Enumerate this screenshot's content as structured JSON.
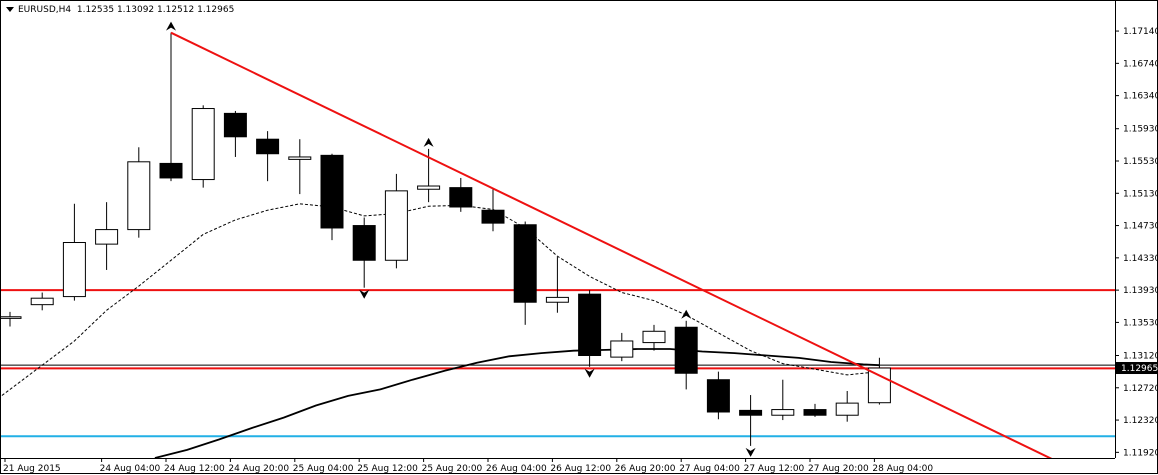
{
  "window": {
    "symbol": "EURUSD,H4",
    "ohlc": "1.12535 1.13092 1.12512 1.12965"
  },
  "chart_data": {
    "type": "candlestick",
    "symbol": "EURUSD",
    "timeframe": "H4",
    "ylim": [
      1.1185,
      1.175
    ],
    "y_ticks": [
      "1.17140",
      "1.16740",
      "1.16340",
      "1.15930",
      "1.15530",
      "1.15130",
      "1.14730",
      "1.14330",
      "1.13930",
      "1.13530",
      "1.13120",
      "1.12720",
      "1.12320",
      "1.11920"
    ],
    "current_price_label": "1.12965",
    "current_price": 1.12965,
    "x_tick_labels": [
      {
        "index": 0,
        "label": "21 Aug 2015"
      },
      {
        "index": 3,
        "label": "24 Aug 04:00"
      },
      {
        "index": 5,
        "label": "24 Aug 12:00"
      },
      {
        "index": 7,
        "label": "24 Aug 20:00"
      },
      {
        "index": 9,
        "label": "25 Aug 04:00"
      },
      {
        "index": 11,
        "label": "25 Aug 12:00"
      },
      {
        "index": 13,
        "label": "25 Aug 20:00"
      },
      {
        "index": 15,
        "label": "26 Aug 04:00"
      },
      {
        "index": 17,
        "label": "26 Aug 12:00"
      },
      {
        "index": 19,
        "label": "26 Aug 20:00"
      },
      {
        "index": 21,
        "label": "27 Aug 04:00"
      },
      {
        "index": 23,
        "label": "27 Aug 12:00"
      },
      {
        "index": 25,
        "label": "27 Aug 20:00"
      },
      {
        "index": 27,
        "label": "28 Aug 04:00"
      }
    ],
    "candles": [
      {
        "o": 1.1358,
        "h": 1.1366,
        "l": 1.1348,
        "c": 1.136
      },
      {
        "o": 1.1375,
        "h": 1.139,
        "l": 1.1368,
        "c": 1.1383
      },
      {
        "o": 1.1385,
        "h": 1.15,
        "l": 1.138,
        "c": 1.1452
      },
      {
        "o": 1.145,
        "h": 1.1502,
        "l": 1.1418,
        "c": 1.1468
      },
      {
        "o": 1.1468,
        "h": 1.157,
        "l": 1.1458,
        "c": 1.1552
      },
      {
        "o": 1.155,
        "h": 1.1712,
        "l": 1.1528,
        "c": 1.1532
      },
      {
        "o": 1.153,
        "h": 1.1622,
        "l": 1.152,
        "c": 1.1618
      },
      {
        "o": 1.1612,
        "h": 1.1615,
        "l": 1.1558,
        "c": 1.1583
      },
      {
        "o": 1.158,
        "h": 1.159,
        "l": 1.1528,
        "c": 1.1562
      },
      {
        "o": 1.1555,
        "h": 1.158,
        "l": 1.1512,
        "c": 1.1558
      },
      {
        "o": 1.156,
        "h": 1.1562,
        "l": 1.1455,
        "c": 1.147
      },
      {
        "o": 1.1473,
        "h": 1.1483,
        "l": 1.1396,
        "c": 1.143
      },
      {
        "o": 1.143,
        "h": 1.1537,
        "l": 1.142,
        "c": 1.1516
      },
      {
        "o": 1.1518,
        "h": 1.1568,
        "l": 1.1502,
        "c": 1.1522
      },
      {
        "o": 1.152,
        "h": 1.1532,
        "l": 1.149,
        "c": 1.1496
      },
      {
        "o": 1.1492,
        "h": 1.1518,
        "l": 1.1466,
        "c": 1.1476
      },
      {
        "o": 1.1474,
        "h": 1.1478,
        "l": 1.135,
        "c": 1.1378
      },
      {
        "o": 1.1378,
        "h": 1.1434,
        "l": 1.1365,
        "c": 1.1384
      },
      {
        "o": 1.1388,
        "h": 1.1393,
        "l": 1.1298,
        "c": 1.1312
      },
      {
        "o": 1.131,
        "h": 1.134,
        "l": 1.1305,
        "c": 1.133
      },
      {
        "o": 1.1328,
        "h": 1.135,
        "l": 1.1318,
        "c": 1.1342
      },
      {
        "o": 1.1347,
        "h": 1.1355,
        "l": 1.127,
        "c": 1.129
      },
      {
        "o": 1.1282,
        "h": 1.1292,
        "l": 1.1233,
        "c": 1.1242
      },
      {
        "o": 1.1244,
        "h": 1.1263,
        "l": 1.12,
        "c": 1.1238
      },
      {
        "o": 1.1238,
        "h": 1.1282,
        "l": 1.1232,
        "c": 1.1245
      },
      {
        "o": 1.1245,
        "h": 1.1252,
        "l": 1.1236,
        "c": 1.1238
      },
      {
        "o": 1.1238,
        "h": 1.1268,
        "l": 1.123,
        "c": 1.1253
      },
      {
        "o": 1.12535,
        "h": 1.13092,
        "l": 1.12512,
        "c": 1.12965
      }
    ],
    "fractals": [
      {
        "index": 5,
        "kind": "up",
        "price": 1.1712
      },
      {
        "index": 11,
        "kind": "down",
        "price": 1.1396
      },
      {
        "index": 13,
        "kind": "up",
        "price": 1.1568
      },
      {
        "index": 18,
        "kind": "down",
        "price": 1.1298
      },
      {
        "index": 21,
        "kind": "up",
        "price": 1.1355
      },
      {
        "index": 23,
        "kind": "down",
        "price": 1.12
      }
    ],
    "moving_average_fast": {
      "style": "dashed",
      "color": "#000000",
      "points": [
        {
          "x": -0.5,
          "y": 1.1255
        },
        {
          "x": 1,
          "y": 1.13
        },
        {
          "x": 2,
          "y": 1.133
        },
        {
          "x": 3,
          "y": 1.1368
        },
        {
          "x": 4,
          "y": 1.1398
        },
        {
          "x": 5,
          "y": 1.143
        },
        {
          "x": 6,
          "y": 1.1462
        },
        {
          "x": 7,
          "y": 1.148
        },
        {
          "x": 8,
          "y": 1.1492
        },
        {
          "x": 9,
          "y": 1.15
        },
        {
          "x": 10,
          "y": 1.1496
        },
        {
          "x": 11,
          "y": 1.1485
        },
        {
          "x": 12,
          "y": 1.1488
        },
        {
          "x": 13,
          "y": 1.1497
        },
        {
          "x": 14,
          "y": 1.1498
        },
        {
          "x": 15,
          "y": 1.1493
        },
        {
          "x": 16,
          "y": 1.147
        },
        {
          "x": 17,
          "y": 1.1435
        },
        {
          "x": 18,
          "y": 1.141
        },
        {
          "x": 19,
          "y": 1.139
        },
        {
          "x": 20,
          "y": 1.138
        },
        {
          "x": 21,
          "y": 1.1362
        },
        {
          "x": 22,
          "y": 1.134
        },
        {
          "x": 23,
          "y": 1.1318
        },
        {
          "x": 24,
          "y": 1.1302
        },
        {
          "x": 25,
          "y": 1.1295
        },
        {
          "x": 26,
          "y": 1.1288
        },
        {
          "x": 27,
          "y": 1.1292
        }
      ]
    },
    "moving_average_slow": {
      "style": "solid",
      "color": "#000000",
      "points": [
        {
          "x": 4.5,
          "y": 1.1185
        },
        {
          "x": 5.5,
          "y": 1.1195
        },
        {
          "x": 6.5,
          "y": 1.1208
        },
        {
          "x": 7.5,
          "y": 1.1222
        },
        {
          "x": 8.5,
          "y": 1.1235
        },
        {
          "x": 9.5,
          "y": 1.125
        },
        {
          "x": 10.5,
          "y": 1.1262
        },
        {
          "x": 11.5,
          "y": 1.127
        },
        {
          "x": 12.5,
          "y": 1.1282
        },
        {
          "x": 13.5,
          "y": 1.1293
        },
        {
          "x": 14.5,
          "y": 1.1303
        },
        {
          "x": 15.5,
          "y": 1.1311
        },
        {
          "x": 16.5,
          "y": 1.1315
        },
        {
          "x": 17.5,
          "y": 1.1318
        },
        {
          "x": 18.5,
          "y": 1.1319
        },
        {
          "x": 19.5,
          "y": 1.132
        },
        {
          "x": 20.5,
          "y": 1.132
        },
        {
          "x": 21.5,
          "y": 1.1317
        },
        {
          "x": 22.5,
          "y": 1.1315
        },
        {
          "x": 23.5,
          "y": 1.1312
        },
        {
          "x": 24.5,
          "y": 1.1309
        },
        {
          "x": 25.5,
          "y": 1.1304
        },
        {
          "x": 26.5,
          "y": 1.1301
        },
        {
          "x": 27,
          "y": 1.13
        }
      ]
    },
    "horizontal_lines": [
      {
        "price": 1.1393,
        "color": "#ee1111",
        "width": 2
      },
      {
        "price": 1.1296,
        "color": "#ee1111",
        "width": 2
      },
      {
        "price": 1.13,
        "color": "#000000",
        "width": 1
      },
      {
        "price": 1.1212,
        "color": "#22b0e6",
        "width": 2
      }
    ],
    "trendline": {
      "color": "#ee1111",
      "from": {
        "x": 5,
        "y": 1.1712
      },
      "to": {
        "x": 32.5,
        "y": 1.1181
      }
    },
    "grid": false
  }
}
